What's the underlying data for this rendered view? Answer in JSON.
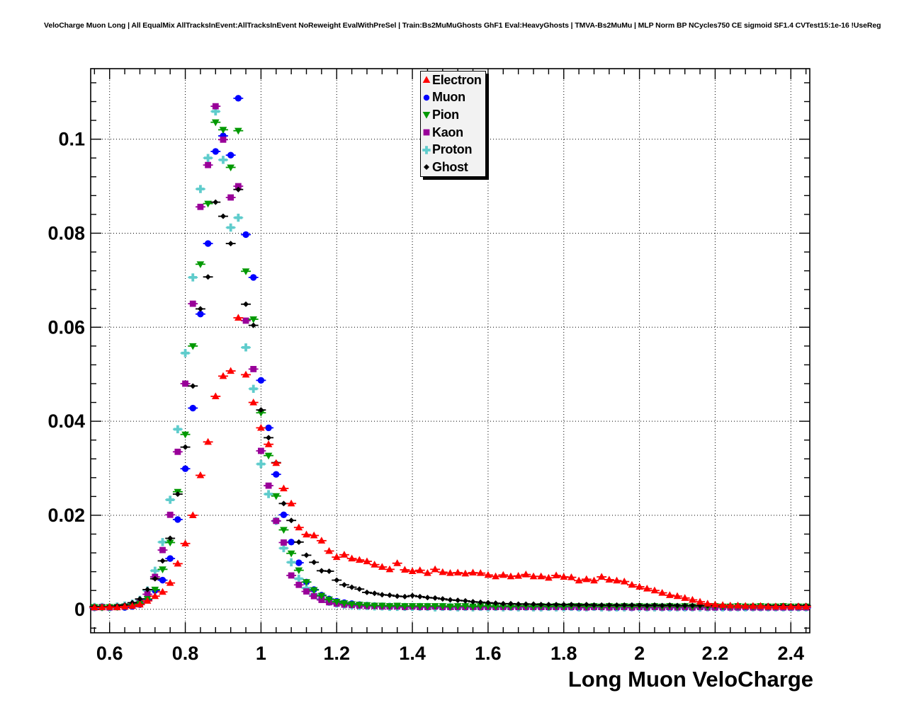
{
  "header": {
    "title": "VeloCharge Muon Long | All EqualMix AllTracksInEvent:AllTracksInEvent NoReweight EvalWithPreSel | Train:Bs2MuMuGhosts GhF1 Eval:HeavyGhosts | TMVA-Bs2MuMu | MLP Norm BP NCycles750 CE sigmoid SF1.4 CVTest15:1e-16 !UseReg"
  },
  "chart_data": {
    "type": "scatter",
    "title": "VeloCharge Muon Long",
    "xlabel": "Long Muon VeloCharge",
    "ylabel": "",
    "xlim": [
      0.55,
      2.45
    ],
    "ylim": [
      -0.005,
      0.115
    ],
    "grid": true,
    "grid_style": "dotted",
    "legend_position": "top-center",
    "background": "#ffffff",
    "frame_color": "#000000",
    "xticks": {
      "values": [
        0.6,
        0.8,
        1.0,
        1.2,
        1.4,
        1.6,
        1.8,
        2.0,
        2.2,
        2.4
      ],
      "labels": [
        "0.6",
        "0.8",
        "1",
        "1.2",
        "1.4",
        "1.6",
        "1.8",
        "2",
        "2.2",
        "2.4"
      ]
    },
    "yticks": {
      "values": [
        0,
        0.02,
        0.04,
        0.06,
        0.08,
        0.1
      ],
      "labels": [
        "0",
        "0.02",
        "0.04",
        "0.06",
        "0.08",
        "0.1"
      ]
    },
    "x_start": 0.56,
    "x_step": 0.02,
    "x_error_half_width": 0.01,
    "series": [
      {
        "name": "Electron",
        "color": "#ff0000",
        "marker": "triangle-up",
        "values": [
          0.0004,
          0.0004,
          0.0005,
          0.0004,
          0.0006,
          0.0007,
          0.001,
          0.0018,
          0.0028,
          0.0037,
          0.0056,
          0.0097,
          0.014,
          0.02,
          0.0285,
          0.0356,
          0.0453,
          0.0496,
          0.0507,
          0.062,
          0.0499,
          0.044,
          0.0386,
          0.0351,
          0.0311,
          0.0257,
          0.0225,
          0.0174,
          0.0159,
          0.0157,
          0.0146,
          0.0124,
          0.0111,
          0.0116,
          0.0108,
          0.0105,
          0.0102,
          0.0095,
          0.009,
          0.0085,
          0.0098,
          0.0084,
          0.0081,
          0.0083,
          0.0077,
          0.0085,
          0.0079,
          0.0077,
          0.0078,
          0.0076,
          0.0078,
          0.0077,
          0.0073,
          0.007,
          0.0073,
          0.007,
          0.0071,
          0.0074,
          0.007,
          0.007,
          0.0067,
          0.0072,
          0.0069,
          0.0068,
          0.0061,
          0.0064,
          0.0061,
          0.0069,
          0.0063,
          0.0061,
          0.0059,
          0.0052,
          0.0048,
          0.0044,
          0.004,
          0.0035,
          0.003,
          0.0028,
          0.0024,
          0.002,
          0.0016,
          0.0012,
          0.001,
          0.0009,
          0.0008,
          0.0008,
          0.0007,
          0.0007,
          0.0007,
          0.0006,
          0.0006,
          0.0006,
          0.0006,
          0.0006,
          0.0006
        ]
      },
      {
        "name": "Muon",
        "color": "#0000ff",
        "marker": "circle",
        "values": [
          0.0003,
          0.0004,
          0.0003,
          0.0005,
          0.0004,
          0.0006,
          0.001,
          0.002,
          0.004,
          0.0062,
          0.0108,
          0.0191,
          0.0299,
          0.0428,
          0.0628,
          0.0778,
          0.0974,
          0.1007,
          0.0966,
          0.1087,
          0.0797,
          0.0706,
          0.0487,
          0.0386,
          0.0287,
          0.0201,
          0.0143,
          0.0099,
          0.0058,
          0.0042,
          0.003,
          0.0022,
          0.0017,
          0.0014,
          0.0012,
          0.001,
          0.0009,
          0.0008,
          0.0007,
          0.0007,
          0.0006,
          0.0006,
          0.0005,
          0.0005,
          0.0005,
          0.0005,
          0.0004,
          0.0005,
          0.0004,
          0.0004,
          0.0005,
          0.0004,
          0.0004,
          0.0004,
          0.0005,
          0.0004,
          0.0004,
          0.0004,
          0.0004,
          0.0004,
          0.0004,
          0.0004,
          0.0004,
          0.0004,
          0.0003,
          0.0004,
          0.0004,
          0.0004,
          0.0004,
          0.0003,
          0.0004,
          0.0003,
          0.0004,
          0.0003,
          0.0004,
          0.0003,
          0.0003,
          0.0004,
          0.0003,
          0.0003,
          0.0004,
          0.0003,
          0.0003,
          0.0003,
          0.0003,
          0.0003,
          0.0003,
          0.0003,
          0.0003,
          0.0003,
          0.0003,
          0.0003,
          0.0003,
          0.0003,
          0.0003
        ]
      },
      {
        "name": "Pion",
        "color": "#009900",
        "marker": "triangle-down",
        "values": [
          0.0005,
          0.0004,
          0.0005,
          0.0005,
          0.0006,
          0.0008,
          0.0012,
          0.0022,
          0.0042,
          0.0085,
          0.0142,
          0.025,
          0.0372,
          0.056,
          0.0734,
          0.0863,
          0.1036,
          0.102,
          0.094,
          0.1018,
          0.0719,
          0.0617,
          0.0418,
          0.0327,
          0.0241,
          0.0169,
          0.0119,
          0.0083,
          0.0058,
          0.0041,
          0.0029,
          0.0021,
          0.0016,
          0.0013,
          0.0011,
          0.001,
          0.0009,
          0.0008,
          0.0008,
          0.0007,
          0.0008,
          0.0007,
          0.0007,
          0.0007,
          0.0007,
          0.0007,
          0.0007,
          0.0006,
          0.0007,
          0.0007,
          0.0006,
          0.0007,
          0.0007,
          0.0006,
          0.0007,
          0.0006,
          0.0007,
          0.0007,
          0.0006,
          0.0007,
          0.0006,
          0.0007,
          0.0006,
          0.0007,
          0.0007,
          0.0006,
          0.0007,
          0.0006,
          0.0007,
          0.0006,
          0.0007,
          0.0006,
          0.0007,
          0.0006,
          0.0007,
          0.0006,
          0.0007,
          0.0006,
          0.0007,
          0.0006,
          0.0007,
          0.0006,
          0.0007,
          0.0006,
          0.0006,
          0.0007,
          0.0006,
          0.0006,
          0.0007,
          0.0006,
          0.0006,
          0.0007,
          0.0006,
          0.0006,
          0.0006
        ]
      },
      {
        "name": "Kaon",
        "color": "#990099",
        "marker": "square",
        "values": [
          0.0004,
          0.0005,
          0.0004,
          0.0005,
          0.0006,
          0.0009,
          0.0015,
          0.0032,
          0.0069,
          0.0126,
          0.0201,
          0.0335,
          0.048,
          0.065,
          0.0856,
          0.0945,
          0.107,
          0.0999,
          0.0876,
          0.09,
          0.0614,
          0.0511,
          0.0337,
          0.0263,
          0.0188,
          0.0142,
          0.0072,
          0.0052,
          0.0038,
          0.0028,
          0.002,
          0.0015,
          0.0012,
          0.001,
          0.0009,
          0.0008,
          0.0007,
          0.0007,
          0.0006,
          0.0006,
          0.0006,
          0.0005,
          0.0006,
          0.0005,
          0.0005,
          0.0006,
          0.0005,
          0.0005,
          0.0005,
          0.0005,
          0.0005,
          0.0005,
          0.0005,
          0.0005,
          0.0005,
          0.0005,
          0.0005,
          0.0005,
          0.0005,
          0.0005,
          0.0005,
          0.0005,
          0.0005,
          0.0005,
          0.0005,
          0.0004,
          0.0005,
          0.0005,
          0.0004,
          0.0005,
          0.0005,
          0.0004,
          0.0005,
          0.0004,
          0.0005,
          0.0004,
          0.0005,
          0.0004,
          0.0005,
          0.0004,
          0.0005,
          0.0004,
          0.0004,
          0.0005,
          0.0004,
          0.0004,
          0.0005,
          0.0004,
          0.0004,
          0.0004,
          0.0004,
          0.0004,
          0.0004,
          0.0004,
          0.0004
        ]
      },
      {
        "name": "Proton",
        "color": "#5fcccc",
        "marker": "cross",
        "values": [
          0.0005,
          0.0005,
          0.0004,
          0.0006,
          0.0008,
          0.0012,
          0.002,
          0.004,
          0.0082,
          0.0143,
          0.0233,
          0.0383,
          0.0545,
          0.0706,
          0.0894,
          0.096,
          0.1059,
          0.0956,
          0.0812,
          0.0833,
          0.0557,
          0.0469,
          0.0309,
          0.0245,
          0.0188,
          0.013,
          0.01,
          0.0065,
          0.0045,
          0.0031,
          0.0022,
          0.0016,
          0.0012,
          0.001,
          0.0008,
          0.0007,
          0.0007,
          0.0006,
          0.0006,
          0.0005,
          0.0005,
          0.0005,
          0.0005,
          0.0005,
          0.0005,
          0.0004,
          0.0005,
          0.0005,
          0.0004,
          0.0005,
          0.0004,
          0.0005,
          0.0004,
          0.0005,
          0.0004,
          0.0005,
          0.0004,
          0.0005,
          0.0004,
          0.0004,
          0.0005,
          0.0004,
          0.0004,
          0.0005,
          0.0004,
          0.0004,
          0.0005,
          0.0004,
          0.0004,
          0.0004,
          0.0004,
          0.0005,
          0.0004,
          0.0004,
          0.0004,
          0.0004,
          0.0004,
          0.0004,
          0.0004,
          0.0004,
          0.0004,
          0.0004,
          0.0004,
          0.0004,
          0.0004,
          0.0004,
          0.0004,
          0.0004,
          0.0004,
          0.0004,
          0.0004,
          0.0004,
          0.0004,
          0.0004,
          0.0004
        ]
      },
      {
        "name": "Ghost",
        "color": "#000000",
        "marker": "diamond",
        "values": [
          0.0006,
          0.0005,
          0.0006,
          0.0007,
          0.0009,
          0.0014,
          0.0022,
          0.0042,
          0.0065,
          0.0103,
          0.0151,
          0.0245,
          0.0345,
          0.0475,
          0.0639,
          0.0707,
          0.0866,
          0.0836,
          0.0778,
          0.0893,
          0.0649,
          0.0604,
          0.0424,
          0.0365,
          0.0312,
          0.0225,
          0.0189,
          0.0143,
          0.0115,
          0.01,
          0.0082,
          0.0081,
          0.0062,
          0.0052,
          0.0047,
          0.0043,
          0.0036,
          0.0034,
          0.0031,
          0.003,
          0.0028,
          0.0027,
          0.0029,
          0.0027,
          0.0025,
          0.0024,
          0.0022,
          0.002,
          0.0019,
          0.0018,
          0.0016,
          0.0015,
          0.0014,
          0.0013,
          0.0012,
          0.0012,
          0.0011,
          0.0011,
          0.0011,
          0.001,
          0.001,
          0.001,
          0.001,
          0.001,
          0.0009,
          0.001,
          0.0009,
          0.0009,
          0.0009,
          0.0009,
          0.0009,
          0.0009,
          0.0009,
          0.0008,
          0.0009,
          0.0008,
          0.0009,
          0.0008,
          0.0008,
          0.0008,
          0.0008,
          0.0008,
          0.0008,
          0.0008,
          0.0008,
          0.0008,
          0.0007,
          0.0008,
          0.0007,
          0.0008,
          0.0007,
          0.0008,
          0.0007,
          0.0008,
          0.0008
        ]
      }
    ]
  }
}
